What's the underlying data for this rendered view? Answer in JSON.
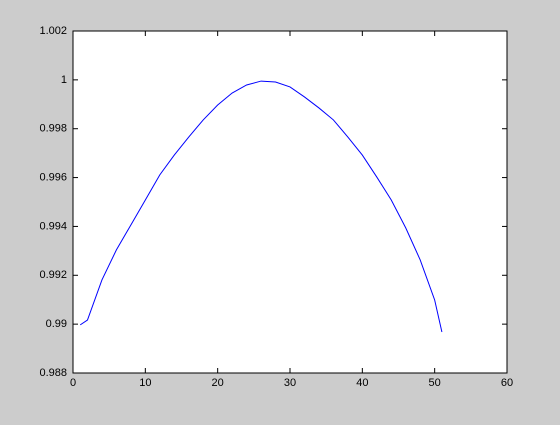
{
  "chart_data": {
    "type": "line",
    "x": [
      1,
      2,
      4,
      6,
      8,
      10,
      12,
      14,
      16,
      18,
      20,
      22,
      24,
      26,
      28,
      30,
      32,
      34,
      36,
      38,
      40,
      42,
      44,
      46,
      48,
      50,
      51
    ],
    "series": [
      {
        "color": "#0000ff",
        "values": [
          0.98997,
          0.99017,
          0.99181,
          0.99304,
          0.99406,
          0.99508,
          0.99611,
          0.99692,
          0.99766,
          0.99836,
          0.99897,
          0.99946,
          0.99979,
          0.99995,
          0.99991,
          0.99971,
          0.9993,
          0.99885,
          0.99836,
          0.99766,
          0.99692,
          0.99602,
          0.99508,
          0.99394,
          0.99263,
          0.99099,
          0.98968
        ]
      }
    ],
    "xlim": [
      0,
      60
    ],
    "xticks": [
      0,
      10,
      20,
      30,
      40,
      50,
      60
    ],
    "ylim": [
      0.988,
      1.002
    ],
    "yticks": [
      0.988,
      0.99,
      0.992,
      0.994,
      0.996,
      0.998,
      1,
      1.002
    ],
    "grid": false
  }
}
